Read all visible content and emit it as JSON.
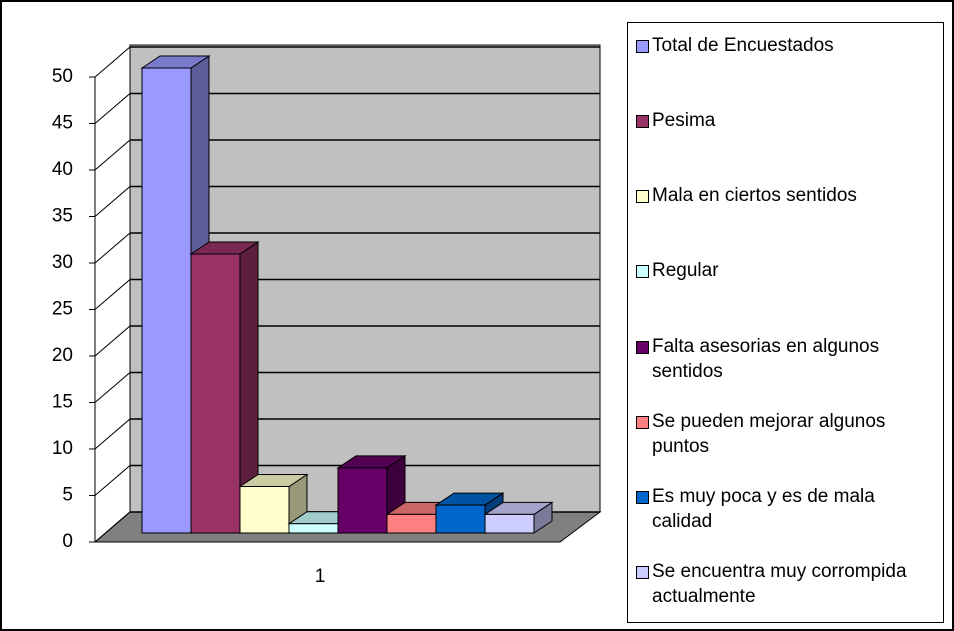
{
  "chart_data": {
    "type": "bar3d",
    "categories": [
      "1"
    ],
    "series": [
      {
        "name": "Total de Encuestados",
        "color": "#9999ff",
        "values": [
          50
        ]
      },
      {
        "name": "Pesima",
        "color": "#993366",
        "values": [
          30
        ]
      },
      {
        "name": "Mala en ciertos sentidos",
        "color": "#ffffcc",
        "values": [
          5
        ]
      },
      {
        "name": "Regular",
        "color": "#ccffff",
        "values": [
          1
        ]
      },
      {
        "name": "Falta asesorias en algunos sentidos",
        "color": "#660066",
        "values": [
          7
        ]
      },
      {
        "name": "Se pueden mejorar algunos puntos",
        "color": "#ff8080",
        "values": [
          2
        ]
      },
      {
        "name": "Es muy poca y es de mala calidad",
        "color": "#0066cc",
        "values": [
          3
        ]
      },
      {
        "name": "Se encuentra muy corrompida actualmente",
        "color": "#ccccff",
        "values": [
          2
        ]
      }
    ],
    "ylim": [
      0,
      50
    ],
    "yticks": [
      0,
      5,
      10,
      15,
      20,
      25,
      30,
      35,
      40,
      45,
      50
    ],
    "grid": true,
    "legend": "right"
  }
}
